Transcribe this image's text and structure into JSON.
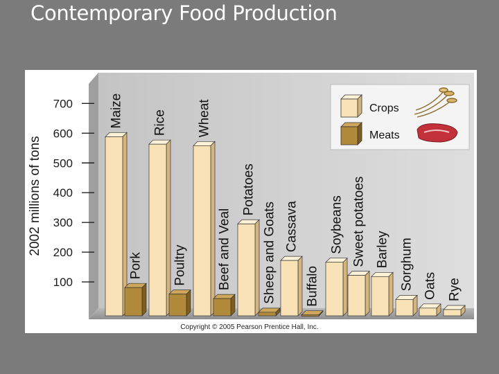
{
  "slide": {
    "title": "Contemporary Food Production"
  },
  "chart_data": {
    "type": "bar",
    "title": "",
    "ylabel": "2002 millions of tons",
    "xlabel": "",
    "ylim": [
      0,
      780
    ],
    "yticks": [
      100,
      200,
      300,
      400,
      500,
      600,
      700
    ],
    "legend": {
      "position": "top-right",
      "entries": [
        {
          "name": "Crops",
          "color": "#f9e3b6"
        },
        {
          "name": "Meats",
          "color": "#b28a3c"
        }
      ]
    },
    "bars": [
      {
        "label": "Maize",
        "value": 602,
        "type": "Crops"
      },
      {
        "label": "Pork",
        "value": 95,
        "type": "Meats"
      },
      {
        "label": "Rice",
        "value": 577,
        "type": "Crops"
      },
      {
        "label": "Poultry",
        "value": 73,
        "type": "Meats"
      },
      {
        "label": "Wheat",
        "value": 572,
        "type": "Crops"
      },
      {
        "label": "Beef and Veal",
        "value": 58,
        "type": "Meats"
      },
      {
        "label": "Potatoes",
        "value": 309,
        "type": "Crops"
      },
      {
        "label": "Sheep and Goats",
        "value": 12,
        "type": "Meats"
      },
      {
        "label": "Cassava",
        "value": 186,
        "type": "Crops"
      },
      {
        "label": "Buffalo",
        "value": 3,
        "type": "Meats"
      },
      {
        "label": "Soybeans",
        "value": 180,
        "type": "Crops"
      },
      {
        "label": "Sweet potatoes",
        "value": 136,
        "type": "Crops"
      },
      {
        "label": "Barley",
        "value": 132,
        "type": "Crops"
      },
      {
        "label": "Sorghum",
        "value": 55,
        "type": "Crops"
      },
      {
        "label": "Oats",
        "value": 26,
        "type": "Crops"
      },
      {
        "label": "Rye",
        "value": 21,
        "type": "Crops"
      }
    ],
    "copyright": "Copyright © 2005 Pearson Prentice Hall, Inc."
  },
  "colors": {
    "crop_front": "#f9e3b6",
    "crop_side": "#d5b57c",
    "crop_top": "#fdf1d8",
    "meat_front": "#b28a3c",
    "meat_side": "#7d5e22",
    "meat_top": "#cfa75a",
    "wall": "#d6d6d6",
    "floor": "#a9a9a9"
  }
}
